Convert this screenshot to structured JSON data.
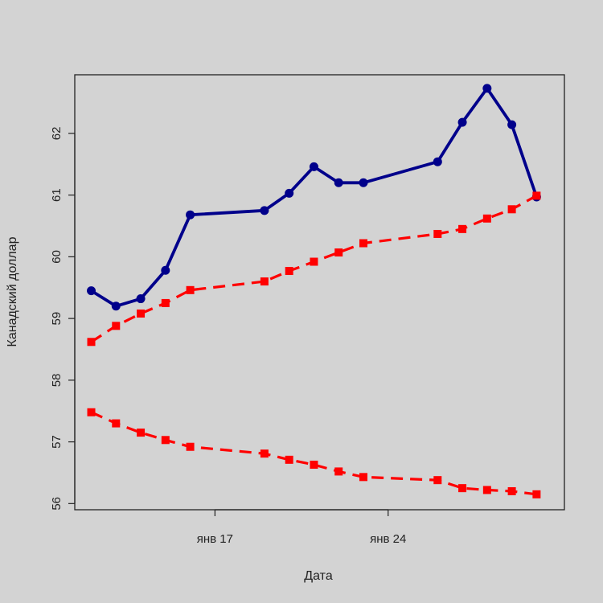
{
  "chart_data": {
    "type": "line",
    "xlabel": "Дата",
    "ylabel": "Канадский доллар",
    "x": [
      "2015-01-12",
      "2015-01-13",
      "2015-01-14",
      "2015-01-15",
      "2015-01-16",
      "2015-01-19",
      "2015-01-20",
      "2015-01-21",
      "2015-01-22",
      "2015-01-23",
      "2015-01-26",
      "2015-01-27",
      "2015-01-28",
      "2015-01-29",
      "2015-01-30"
    ],
    "xlim": [
      "2015-01-11T08:00",
      "2015-01-31T03:00"
    ],
    "x_ticks": [
      {
        "date": "2015-01-17",
        "label": "янв 17"
      },
      {
        "date": "2015-01-24",
        "label": "янв 24"
      }
    ],
    "ylim": [
      55.9,
      62.95
    ],
    "y_ticks": [
      56,
      57,
      58,
      59,
      60,
      61,
      62
    ],
    "grid": false,
    "series": [
      {
        "values": [
          59.45,
          59.2,
          59.32,
          59.78,
          60.68,
          60.75,
          61.03,
          61.46,
          61.2,
          61.2,
          61.54,
          62.18,
          62.73,
          62.14,
          60.97
        ],
        "color": "#00008b",
        "style": "solid",
        "marker": "circle"
      },
      {
        "values": [
          58.62,
          58.88,
          59.08,
          59.25,
          59.46,
          59.6,
          59.77,
          59.92,
          60.07,
          60.22,
          60.37,
          60.45,
          60.62,
          60.77,
          60.99
        ],
        "color": "#ff0000",
        "style": "dashed",
        "marker": "square"
      },
      {
        "values": [
          57.48,
          57.3,
          57.15,
          57.03,
          56.92,
          56.81,
          56.71,
          56.63,
          56.52,
          56.43,
          56.38,
          56.25,
          56.22,
          56.2,
          56.15
        ],
        "color": "#ff0000",
        "style": "dashed",
        "marker": "square"
      }
    ]
  }
}
